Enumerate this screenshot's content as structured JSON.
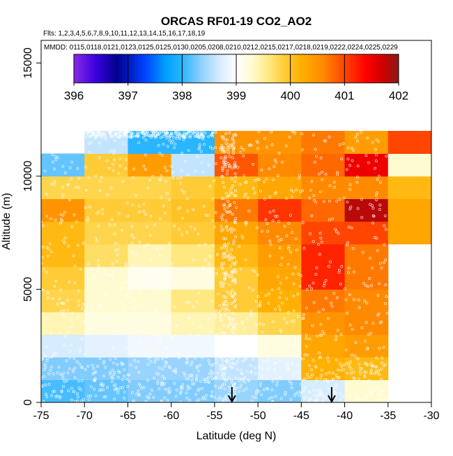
{
  "chart_data": {
    "type": "heatmap",
    "title": "ORCAS RF01-19 CO2_AO2",
    "flights_note": "Flts: 1,2,3,4,5,6,7,8,9,10,11,12,13,14,15,16,17,18,19",
    "mmdd_note": "MMDD: 0115,0118,0121,0123,0125,0125,0130,0205,0208,0210,0212,0215,0217,0218,0219,0222,0224,0225,0229",
    "xlabel": "Latitude (deg N)",
    "ylabel": "Altitude (m)",
    "xlim": [
      -75,
      -30
    ],
    "ylim": [
      0,
      16000
    ],
    "xticks": [
      -75,
      -70,
      -65,
      -60,
      -55,
      -50,
      -45,
      -40,
      -35,
      -30
    ],
    "xtick_labels": [
      "-75",
      "-70",
      "-65",
      "-60",
      "-55",
      "-50",
      "-45",
      "-40",
      "-35",
      "-30"
    ],
    "yticks": [
      0,
      5000,
      10000,
      15000
    ],
    "ytick_labels": [
      "0",
      "5000",
      "10000",
      "15000"
    ],
    "colorbar": {
      "min": 396,
      "max": 402,
      "ticks": [
        396,
        397,
        398,
        399,
        400,
        401,
        402
      ],
      "tick_labels": [
        "396",
        "397",
        "398",
        "399",
        "400",
        "401",
        "402"
      ],
      "stops": [
        [
          396.0,
          "#8a2be2"
        ],
        [
          396.4,
          "#3a00e0"
        ],
        [
          396.8,
          "#00008b"
        ],
        [
          397.3,
          "#0040ff"
        ],
        [
          397.7,
          "#00a0ff"
        ],
        [
          398.0,
          "#2ab5ff"
        ],
        [
          398.35,
          "#8fd0ff"
        ],
        [
          398.7,
          "#d6ecff"
        ],
        [
          399.0,
          "#ffffff"
        ],
        [
          399.3,
          "#fffbd0"
        ],
        [
          399.6,
          "#ffe880"
        ],
        [
          399.85,
          "#ffd040"
        ],
        [
          400.2,
          "#ffb000"
        ],
        [
          400.6,
          "#ff8a00"
        ],
        [
          401.0,
          "#ff4500"
        ],
        [
          401.4,
          "#ff0000"
        ],
        [
          401.7,
          "#d00000"
        ],
        [
          402.0,
          "#8b1a1a"
        ]
      ]
    },
    "lat_bin_edges": [
      -75,
      -70,
      -65,
      -60,
      -55,
      -50,
      -45,
      -40,
      -35,
      -30
    ],
    "alt_bin_edges": [
      0,
      1000,
      2000,
      3000,
      4000,
      5000,
      6000,
      7000,
      8000,
      9000,
      10000,
      11000,
      12000
    ],
    "co2_grid_rows_low_to_high_altitude": [
      [
        398.1,
        398.2,
        398.3,
        398.3,
        398.4,
        398.3,
        398.7,
        399.3,
        null
      ],
      [
        398.3,
        398.3,
        398.4,
        398.4,
        398.6,
        398.8,
        400.2,
        400.1,
        null
      ],
      [
        398.7,
        398.8,
        398.9,
        398.9,
        399.0,
        399.2,
        400.3,
        400.4,
        null
      ],
      [
        399.4,
        399.2,
        399.2,
        399.4,
        399.5,
        399.8,
        400.5,
        400.6,
        null
      ],
      [
        399.8,
        399.3,
        399.3,
        399.6,
        399.9,
        400.2,
        400.7,
        400.6,
        null
      ],
      [
        399.9,
        399.3,
        399.1,
        399.2,
        399.9,
        400.3,
        401.2,
        400.7,
        null
      ],
      [
        400.1,
        399.7,
        399.4,
        399.6,
        400.1,
        400.4,
        401.2,
        400.7,
        null
      ],
      [
        400.1,
        399.8,
        399.8,
        399.9,
        400.3,
        400.6,
        401.0,
        401.0,
        400.3
      ],
      [
        400.5,
        399.9,
        399.9,
        400.0,
        400.7,
        401.1,
        400.8,
        401.8,
        400.3
      ],
      [
        399.8,
        399.8,
        399.8,
        399.9,
        400.1,
        400.3,
        400.6,
        400.6,
        400.1
      ],
      [
        398.2,
        399.9,
        400.4,
        398.6,
        400.9,
        400.6,
        400.8,
        401.5,
        399.3
      ],
      [
        null,
        398.6,
        398.0,
        398.0,
        400.5,
        400.5,
        400.7,
        400.4,
        401.0
      ]
    ],
    "bin_top_altitude": [
      null,
      12000,
      12000,
      12000,
      12000,
      12000,
      12000,
      12000,
      12000
    ],
    "arrows_at_latitude": [
      -53,
      -41.5
    ]
  }
}
